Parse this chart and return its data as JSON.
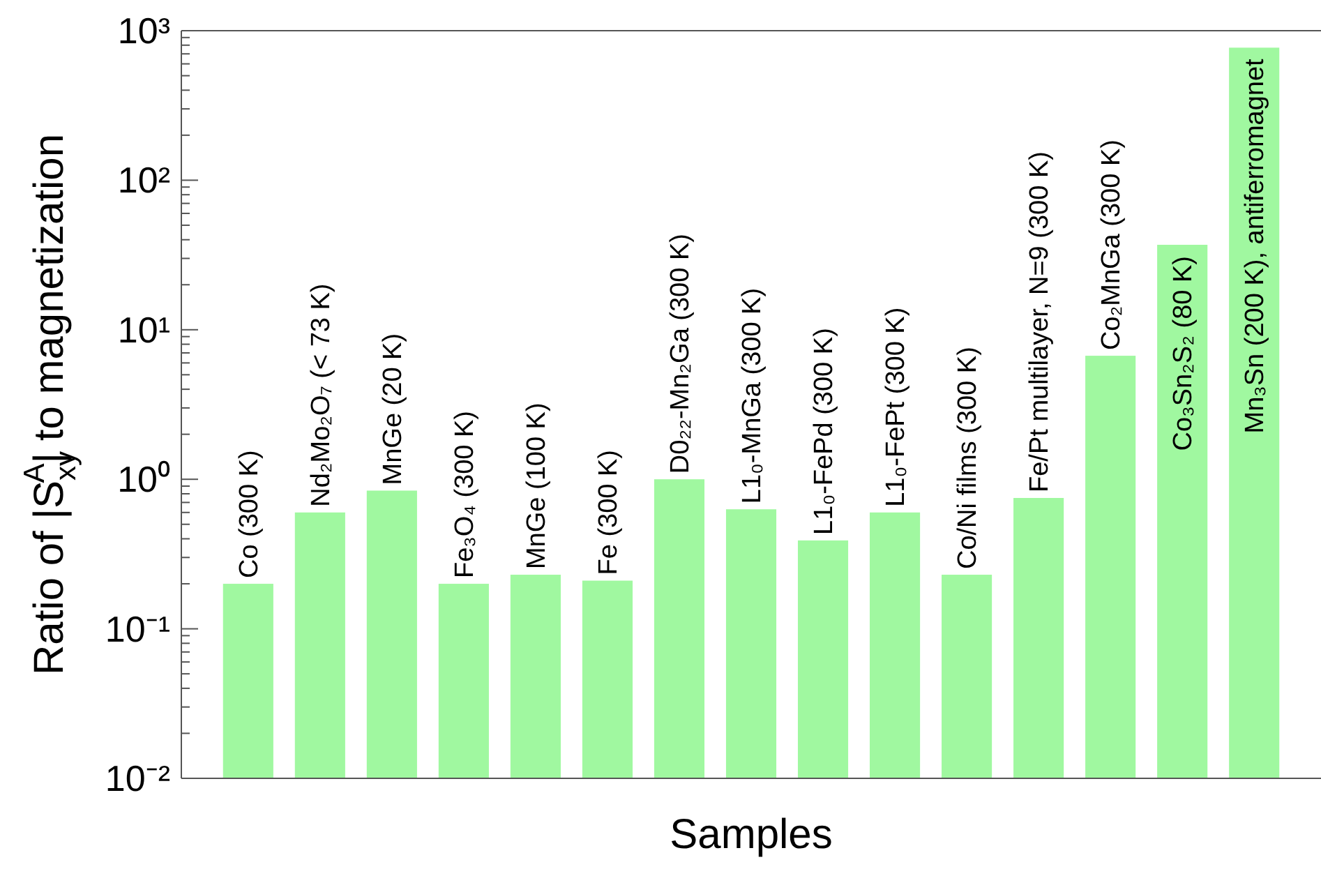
{
  "chart_data": {
    "type": "bar",
    "xlabel": "Samples",
    "ylabel": "Ratio of |S$_{xy}$$^{A}$| to magnetization",
    "categories": [
      "Co (300 K)",
      "Nd₂Mo₂O₇ (< 73 K)",
      "MnGe (20 K)",
      "Fe₃O₄ (300 K)",
      "MnGe (100 K)",
      "Fe (300 K)",
      "D0₂₂-Mn₂Ga (300 K)",
      "L1₀-MnGa (300 K)",
      "L1₀-FePd (300 K)",
      "L1₀-FePt (300 K)",
      "Co/Ni films (300 K)",
      "Fe/Pt multilayer, N=9 (300 K)",
      "Co₂MnGa (300 K)",
      "Co₃Sn₂S₂ (80 K)",
      "Mn₃Sn (200 K), antiferromagnet"
    ],
    "values": [
      0.2,
      0.6,
      0.84,
      0.2,
      0.23,
      0.21,
      1.0,
      0.63,
      0.39,
      0.6,
      0.23,
      0.75,
      6.7,
      37,
      770
    ],
    "color": "#a0f8a0",
    "log": true,
    "grid": false,
    "ylim": [
      0.01,
      1000
    ],
    "yticks": [
      {
        "value": 0.01,
        "label": "10⁻²"
      },
      {
        "value": 0.02,
        "label": null
      },
      {
        "value": 0.03,
        "label": null
      },
      {
        "value": 0.04,
        "label": null
      },
      {
        "value": 0.05,
        "label": null
      },
      {
        "value": 0.06,
        "label": null
      },
      {
        "value": 0.07,
        "label": null
      },
      {
        "value": 0.08,
        "label": null
      },
      {
        "value": 0.09,
        "label": null
      },
      {
        "value": 0.1,
        "label": "10⁻¹"
      },
      {
        "value": 0.2,
        "label": null
      },
      {
        "value": 0.3,
        "label": null
      },
      {
        "value": 0.4,
        "label": null
      },
      {
        "value": 0.5,
        "label": null
      },
      {
        "value": 0.6,
        "label": null
      },
      {
        "value": 0.7,
        "label": null
      },
      {
        "value": 0.8,
        "label": null
      },
      {
        "value": 0.9,
        "label": null
      },
      {
        "value": 1,
        "label": "10⁰"
      },
      {
        "value": 2,
        "label": null
      },
      {
        "value": 3,
        "label": null
      },
      {
        "value": 4,
        "label": null
      },
      {
        "value": 5,
        "label": null
      },
      {
        "value": 6,
        "label": null
      },
      {
        "value": 7,
        "label": null
      },
      {
        "value": 8,
        "label": null
      },
      {
        "value": 9,
        "label": null
      },
      {
        "value": 10,
        "label": "10¹"
      },
      {
        "value": 20,
        "label": null
      },
      {
        "value": 30,
        "label": null
      },
      {
        "value": 40,
        "label": null
      },
      {
        "value": 50,
        "label": null
      },
      {
        "value": 60,
        "label": null
      },
      {
        "value": 70,
        "label": null
      },
      {
        "value": 80,
        "label": null
      },
      {
        "value": 90,
        "label": null
      },
      {
        "value": 100,
        "label": "10²"
      },
      {
        "value": 200,
        "label": null
      },
      {
        "value": 300,
        "label": null
      },
      {
        "value": 400,
        "label": null
      },
      {
        "value": 500,
        "label": null
      },
      {
        "value": 600,
        "label": null
      },
      {
        "value": 700,
        "label": null
      },
      {
        "value": 800,
        "label": null
      },
      {
        "value": 900,
        "label": null
      },
      {
        "value": 1000,
        "label": "10³"
      }
    ]
  }
}
